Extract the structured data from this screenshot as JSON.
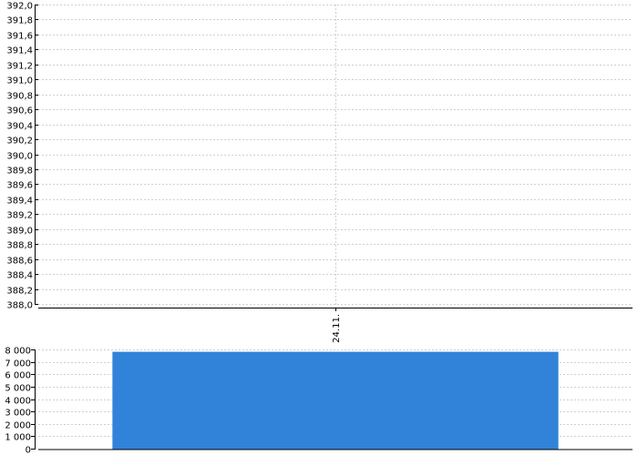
{
  "chart_data": [
    {
      "type": "line",
      "categories": [
        "24.11."
      ],
      "series": [],
      "ylim": [
        388.0,
        392.0
      ],
      "ytick_labels": [
        "388,0",
        "388,2",
        "388,4",
        "388,6",
        "388,8",
        "389,0",
        "389,2",
        "389,4",
        "389,6",
        "389,8",
        "390,0",
        "390,2",
        "390,4",
        "390,6",
        "390,8",
        "391,0",
        "391,2",
        "391,4",
        "391,6",
        "391,8",
        "392,0"
      ],
      "grid": true,
      "grid_style": "dashed",
      "grid_color": "#d0d0d0"
    },
    {
      "type": "bar",
      "categories": [
        "24.11."
      ],
      "values": [
        7800
      ],
      "ylim": [
        0,
        8000
      ],
      "ytick_labels": [
        "0",
        "1 000",
        "2 000",
        "3 000",
        "4 000",
        "5 000",
        "6 000",
        "7 000",
        "8 000"
      ],
      "grid": true,
      "bar_color": "#3083d8"
    }
  ]
}
